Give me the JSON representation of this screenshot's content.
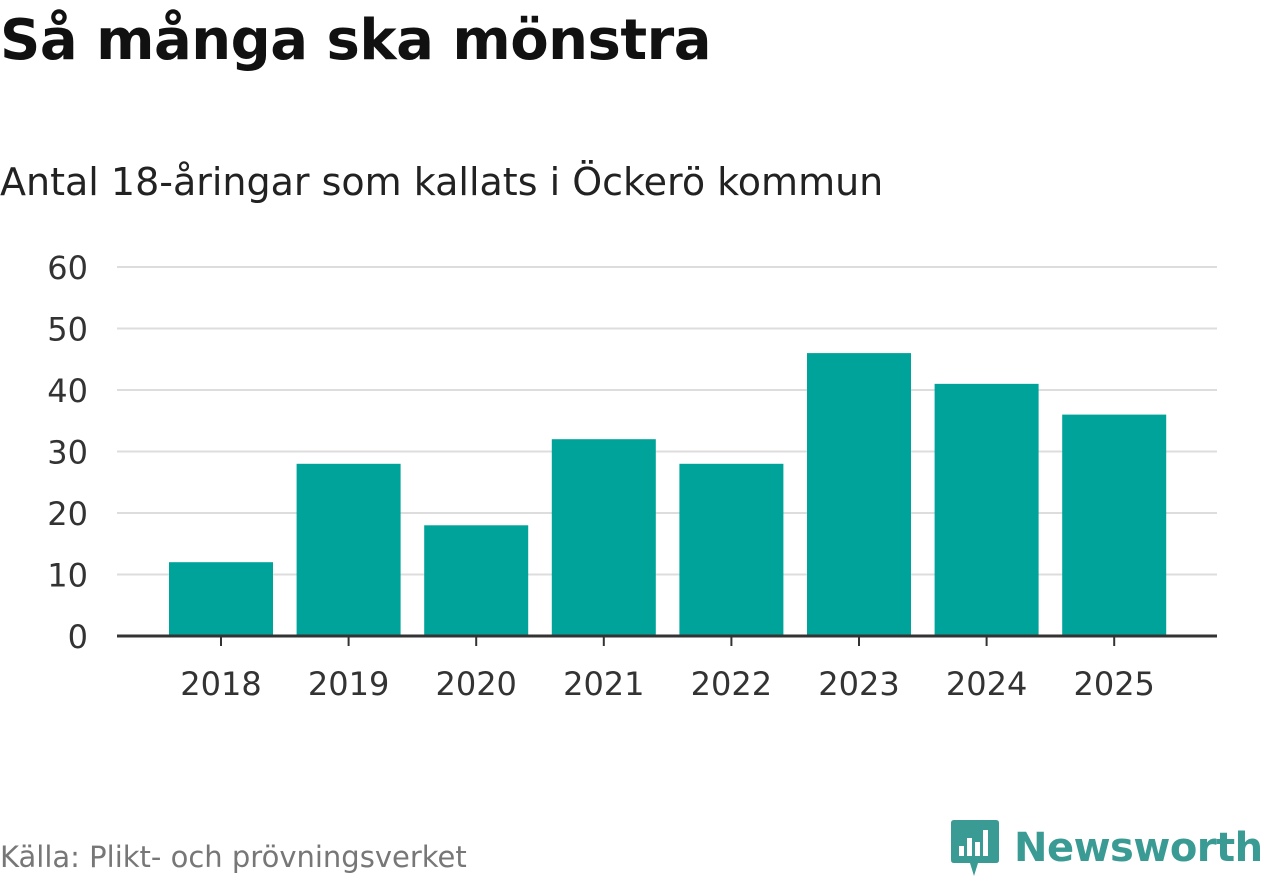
{
  "header": {
    "title": "Så många ska mönstra",
    "subtitle": "Antal 18-åringar som kallats i Öckerö kommun"
  },
  "footer": {
    "source": "Källa: Plikt- och prövningsverket",
    "brand": "Newsworthy",
    "brand_color": "#3a9a94"
  },
  "chart_data": {
    "type": "bar",
    "title": "Så många ska mönstra",
    "subtitle": "Antal 18-åringar som kallats i Öckerö kommun",
    "categories": [
      "2018",
      "2019",
      "2020",
      "2021",
      "2022",
      "2023",
      "2024",
      "2025"
    ],
    "values": [
      12,
      28,
      18,
      32,
      28,
      46,
      41,
      36
    ],
    "xlabel": "",
    "ylabel": "",
    "ylim": [
      0,
      60
    ],
    "yticks": [
      0,
      10,
      20,
      30,
      40,
      50,
      60
    ],
    "grid": true,
    "bar_color": "#00a39a"
  }
}
